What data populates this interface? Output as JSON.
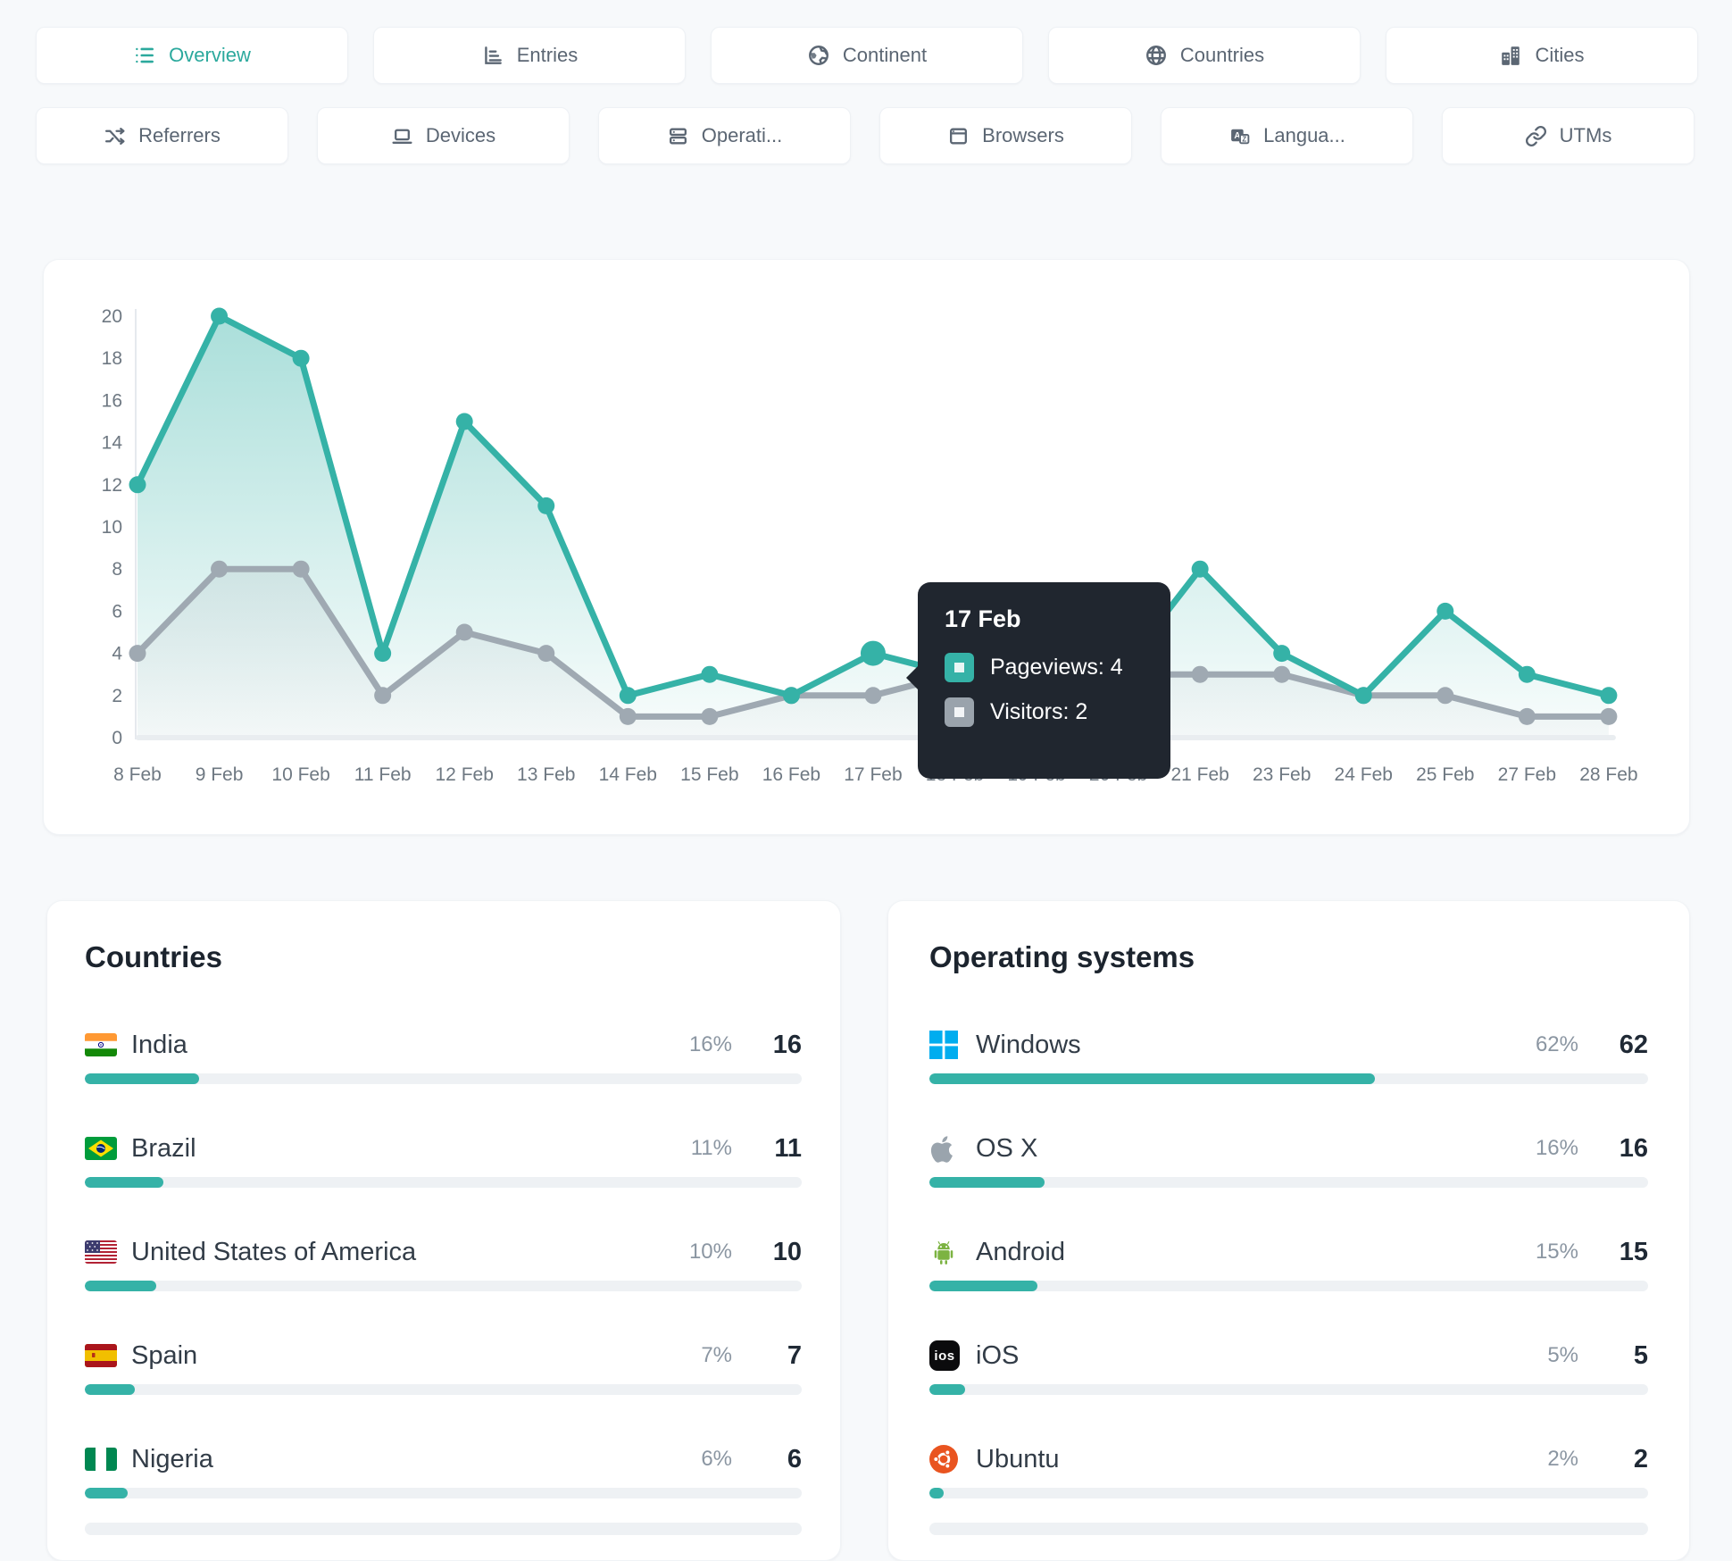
{
  "colors": {
    "accent_teal": "#35b2a7",
    "visitors_gray": "#9fa9b2",
    "tooltip_bg": "#20262f",
    "bar_track": "#eef1f4",
    "windows_blue": "#00adef",
    "android_green": "#7cb342",
    "ubuntu_orange": "#e95420",
    "apple_gray": "#9aa4ad",
    "axis_text": "#6e7882"
  },
  "tabs_row1": [
    {
      "label": "Overview",
      "icon": "list-icon",
      "active": true
    },
    {
      "label": "Entries",
      "icon": "bar-chart-icon",
      "active": false
    },
    {
      "label": "Continent",
      "icon": "earth-icon",
      "active": false
    },
    {
      "label": "Countries",
      "icon": "globe-icon",
      "active": false
    },
    {
      "label": "Cities",
      "icon": "buildings-icon",
      "active": false
    }
  ],
  "tabs_row2": [
    {
      "label": "Referrers",
      "icon": "shuffle-icon",
      "active": false
    },
    {
      "label": "Devices",
      "icon": "laptop-icon",
      "active": false
    },
    {
      "label": "Operati...",
      "icon": "server-icon",
      "active": false
    },
    {
      "label": "Browsers",
      "icon": "window-icon",
      "active": false
    },
    {
      "label": "Langua...",
      "icon": "translate-icon",
      "active": false
    },
    {
      "label": "UTMs",
      "icon": "link-icon",
      "active": false
    }
  ],
  "chart_data": {
    "type": "line",
    "x": [
      "8 Feb",
      "9 Feb",
      "10 Feb",
      "11 Feb",
      "12 Feb",
      "13 Feb",
      "14 Feb",
      "15 Feb",
      "16 Feb",
      "17 Feb",
      "18 Feb",
      "19 Feb",
      "20 Feb",
      "21 Feb",
      "23 Feb",
      "24 Feb",
      "25 Feb",
      "27 Feb",
      "28 Feb"
    ],
    "series": [
      {
        "name": "Pageviews",
        "color": "#35b2a7",
        "values": [
          12,
          20,
          18,
          4,
          15,
          11,
          2,
          3,
          2,
          4,
          3,
          1,
          3,
          8,
          4,
          2,
          6,
          3,
          2
        ]
      },
      {
        "name": "Visitors",
        "color": "#9fa9b2",
        "values": [
          4,
          8,
          8,
          2,
          5,
          4,
          1,
          1,
          2,
          2,
          3,
          1,
          3,
          3,
          3,
          2,
          2,
          1,
          1
        ]
      }
    ],
    "yticks": [
      0,
      2,
      4,
      6,
      8,
      10,
      12,
      14,
      16,
      18,
      20
    ],
    "ylim": [
      0,
      20
    ],
    "grid": false,
    "legend": "tooltip-only",
    "highlight_index": 9
  },
  "tooltip": {
    "title": "17 Feb",
    "rows": [
      {
        "label": "Pageviews: 4",
        "swatch": "#35b2a7",
        "swatch_inner": "#e8f6f4"
      },
      {
        "label": "Visitors: 2",
        "swatch": "#9aa3ac",
        "swatch_inner": "#f3f5f7"
      }
    ]
  },
  "panels": {
    "countries": {
      "title": "Countries",
      "rows": [
        {
          "name": "India",
          "flag": "india-flag",
          "pct": "16%",
          "pct_num": 16,
          "value": "16"
        },
        {
          "name": "Brazil",
          "flag": "brazil-flag",
          "pct": "11%",
          "pct_num": 11,
          "value": "11"
        },
        {
          "name": "United States of America",
          "flag": "usa-flag",
          "pct": "10%",
          "pct_num": 10,
          "value": "10"
        },
        {
          "name": "Spain",
          "flag": "spain-flag",
          "pct": "7%",
          "pct_num": 7,
          "value": "7"
        },
        {
          "name": "Nigeria",
          "flag": "nigeria-flag",
          "pct": "6%",
          "pct_num": 6,
          "value": "6"
        }
      ]
    },
    "os": {
      "title": "Operating systems",
      "rows": [
        {
          "name": "Windows",
          "icon": "windows-icon",
          "pct": "62%",
          "pct_num": 62,
          "value": "62"
        },
        {
          "name": "OS X",
          "icon": "apple-icon",
          "pct": "16%",
          "pct_num": 16,
          "value": "16"
        },
        {
          "name": "Android",
          "icon": "android-icon",
          "pct": "15%",
          "pct_num": 15,
          "value": "15"
        },
        {
          "name": "iOS",
          "icon": "ios-icon",
          "pct": "5%",
          "pct_num": 5,
          "value": "5"
        },
        {
          "name": "Ubuntu",
          "icon": "ubuntu-icon",
          "pct": "2%",
          "pct_num": 2,
          "value": "2"
        }
      ]
    }
  }
}
